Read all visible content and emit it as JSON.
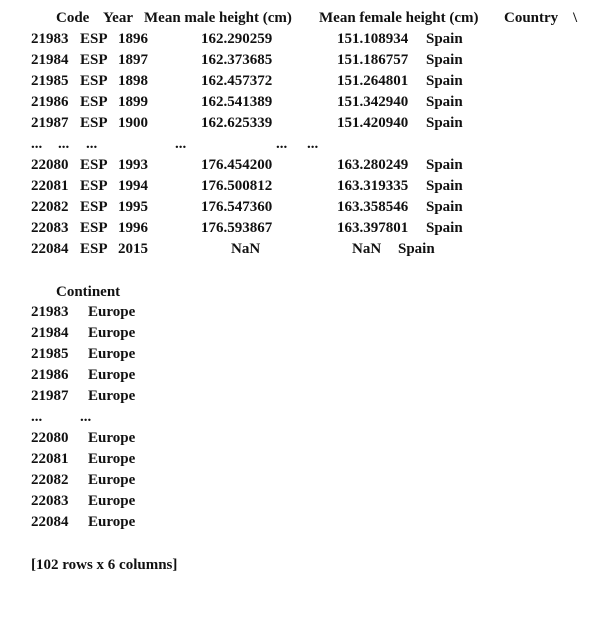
{
  "table1": {
    "headers": [
      "Code",
      "Year",
      "Mean male height (cm)",
      "Mean female height (cm)",
      "Country",
      "\\"
    ],
    "rows": [
      {
        "index": "21983",
        "code": "ESP",
        "year": "1896",
        "male": "162.290259",
        "female": "151.108934",
        "country": "Spain"
      },
      {
        "index": "21984",
        "code": "ESP",
        "year": "1897",
        "male": "162.373685",
        "female": "151.186757",
        "country": "Spain"
      },
      {
        "index": "21985",
        "code": "ESP",
        "year": "1898",
        "male": "162.457372",
        "female": "151.264801",
        "country": "Spain"
      },
      {
        "index": "21986",
        "code": "ESP",
        "year": "1899",
        "male": "162.541389",
        "female": "151.342940",
        "country": "Spain"
      },
      {
        "index": "21987",
        "code": "ESP",
        "year": "1900",
        "male": "162.625339",
        "female": "151.420940",
        "country": "Spain"
      },
      {
        "index": "...",
        "code": "...",
        "year": "...",
        "male": "...",
        "female": "...",
        "country": "..."
      },
      {
        "index": "22080",
        "code": "ESP",
        "year": "1993",
        "male": "176.454200",
        "female": "163.280249",
        "country": "Spain"
      },
      {
        "index": "22081",
        "code": "ESP",
        "year": "1994",
        "male": "176.500812",
        "female": "163.319335",
        "country": "Spain"
      },
      {
        "index": "22082",
        "code": "ESP",
        "year": "1995",
        "male": "176.547360",
        "female": "163.358546",
        "country": "Spain"
      },
      {
        "index": "22083",
        "code": "ESP",
        "year": "1996",
        "male": "176.593867",
        "female": "163.397801",
        "country": "Spain"
      },
      {
        "index": "22084",
        "code": "ESP",
        "year": "2015",
        "male": "NaN",
        "female": "NaN",
        "country": "Spain"
      }
    ]
  },
  "table2": {
    "header": "Continent",
    "rows": [
      {
        "index": "21983",
        "continent": "Europe"
      },
      {
        "index": "21984",
        "continent": "Europe"
      },
      {
        "index": "21985",
        "continent": "Europe"
      },
      {
        "index": "21986",
        "continent": "Europe"
      },
      {
        "index": "21987",
        "continent": "Europe"
      },
      {
        "index": "...",
        "continent": "..."
      },
      {
        "index": "22080",
        "continent": "Europe"
      },
      {
        "index": "22081",
        "continent": "Europe"
      },
      {
        "index": "22082",
        "continent": "Europe"
      },
      {
        "index": "22083",
        "continent": "Europe"
      },
      {
        "index": "22084",
        "continent": "Europe"
      }
    ]
  },
  "footer": "[102 rows x 6 columns]"
}
